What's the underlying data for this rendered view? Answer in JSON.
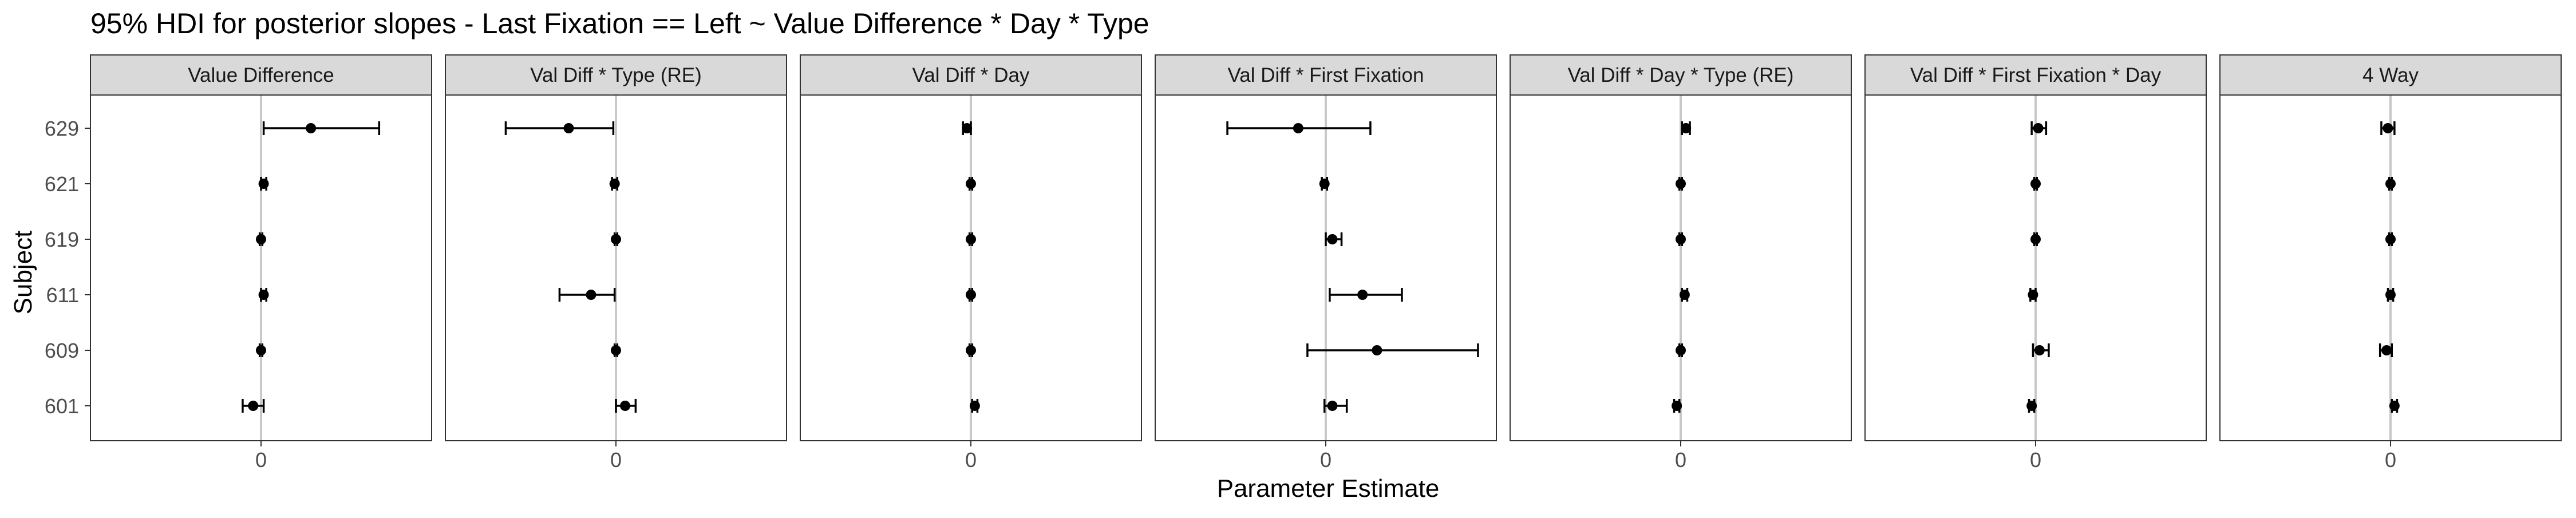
{
  "chart_data": {
    "type": "scatter",
    "subtype": "faceted point-range (95% HDI intervals)",
    "title": "95% HDI for posterior slopes - Last Fixation == Left ~ Value Difference * Day * Type",
    "xlabel": "Parameter Estimate",
    "ylabel": "Subject",
    "x_tick_labels": [
      "0"
    ],
    "y_categories": [
      "629",
      "621",
      "619",
      "611",
      "609",
      "601"
    ],
    "xlim": [
      -1.3,
      1.3
    ],
    "reference_line_x": 0,
    "grid": false,
    "facets": [
      {
        "name": "Value Difference",
        "points": [
          {
            "subject": "629",
            "estimate": 0.38,
            "lower": 0.02,
            "upper": 0.9
          },
          {
            "subject": "621",
            "estimate": 0.02,
            "lower": 0.0,
            "upper": 0.04
          },
          {
            "subject": "619",
            "estimate": 0.0,
            "lower": -0.01,
            "upper": 0.01
          },
          {
            "subject": "611",
            "estimate": 0.02,
            "lower": 0.0,
            "upper": 0.04
          },
          {
            "subject": "609",
            "estimate": 0.0,
            "lower": -0.01,
            "upper": 0.01
          },
          {
            "subject": "601",
            "estimate": -0.06,
            "lower": -0.14,
            "upper": 0.02
          }
        ]
      },
      {
        "name": "Val Diff * Type (RE)",
        "points": [
          {
            "subject": "629",
            "estimate": -0.36,
            "lower": -0.84,
            "upper": -0.02
          },
          {
            "subject": "621",
            "estimate": -0.01,
            "lower": -0.03,
            "upper": 0.01
          },
          {
            "subject": "619",
            "estimate": 0.0,
            "lower": -0.01,
            "upper": 0.01
          },
          {
            "subject": "611",
            "estimate": -0.19,
            "lower": -0.43,
            "upper": -0.01
          },
          {
            "subject": "609",
            "estimate": 0.0,
            "lower": -0.01,
            "upper": 0.01
          },
          {
            "subject": "601",
            "estimate": 0.07,
            "lower": 0.0,
            "upper": 0.15
          }
        ]
      },
      {
        "name": "Val Diff * Day",
        "points": [
          {
            "subject": "629",
            "estimate": -0.03,
            "lower": -0.06,
            "upper": 0.0
          },
          {
            "subject": "621",
            "estimate": 0.0,
            "lower": -0.01,
            "upper": 0.01
          },
          {
            "subject": "619",
            "estimate": 0.0,
            "lower": -0.01,
            "upper": 0.01
          },
          {
            "subject": "611",
            "estimate": 0.0,
            "lower": -0.01,
            "upper": 0.01
          },
          {
            "subject": "609",
            "estimate": 0.0,
            "lower": -0.01,
            "upper": 0.01
          },
          {
            "subject": "601",
            "estimate": 0.03,
            "lower": 0.01,
            "upper": 0.05
          }
        ]
      },
      {
        "name": "Val Diff * First Fixation",
        "points": [
          {
            "subject": "629",
            "estimate": -0.21,
            "lower": -0.75,
            "upper": 0.34
          },
          {
            "subject": "621",
            "estimate": -0.01,
            "lower": -0.03,
            "upper": 0.01
          },
          {
            "subject": "619",
            "estimate": 0.05,
            "lower": 0.0,
            "upper": 0.12
          },
          {
            "subject": "611",
            "estimate": 0.28,
            "lower": 0.03,
            "upper": 0.58
          },
          {
            "subject": "609",
            "estimate": 0.39,
            "lower": -0.14,
            "upper": 1.16
          },
          {
            "subject": "601",
            "estimate": 0.05,
            "lower": -0.01,
            "upper": 0.16
          }
        ]
      },
      {
        "name": "Val Diff * Day * Type (RE)",
        "points": [
          {
            "subject": "629",
            "estimate": 0.04,
            "lower": 0.01,
            "upper": 0.07
          },
          {
            "subject": "621",
            "estimate": 0.0,
            "lower": -0.01,
            "upper": 0.01
          },
          {
            "subject": "619",
            "estimate": 0.0,
            "lower": -0.01,
            "upper": 0.01
          },
          {
            "subject": "611",
            "estimate": 0.03,
            "lower": 0.01,
            "upper": 0.05
          },
          {
            "subject": "609",
            "estimate": 0.0,
            "lower": -0.01,
            "upper": 0.01
          },
          {
            "subject": "601",
            "estimate": -0.03,
            "lower": -0.05,
            "upper": -0.01
          }
        ]
      },
      {
        "name": "Val Diff * First Fixation * Day",
        "points": [
          {
            "subject": "629",
            "estimate": 0.02,
            "lower": -0.03,
            "upper": 0.08
          },
          {
            "subject": "621",
            "estimate": 0.0,
            "lower": -0.01,
            "upper": 0.01
          },
          {
            "subject": "619",
            "estimate": 0.0,
            "lower": -0.01,
            "upper": 0.01
          },
          {
            "subject": "611",
            "estimate": -0.02,
            "lower": -0.04,
            "upper": 0.0
          },
          {
            "subject": "609",
            "estimate": 0.03,
            "lower": -0.02,
            "upper": 0.1
          },
          {
            "subject": "601",
            "estimate": -0.03,
            "lower": -0.05,
            "upper": -0.01
          }
        ]
      },
      {
        "name": "4 Way",
        "points": [
          {
            "subject": "629",
            "estimate": -0.02,
            "lower": -0.07,
            "upper": 0.03
          },
          {
            "subject": "621",
            "estimate": 0.0,
            "lower": -0.01,
            "upper": 0.01
          },
          {
            "subject": "619",
            "estimate": 0.0,
            "lower": -0.01,
            "upper": 0.01
          },
          {
            "subject": "611",
            "estimate": 0.0,
            "lower": -0.02,
            "upper": 0.02
          },
          {
            "subject": "609",
            "estimate": -0.03,
            "lower": -0.08,
            "upper": 0.01
          },
          {
            "subject": "601",
            "estimate": 0.03,
            "lower": 0.01,
            "upper": 0.05
          }
        ]
      }
    ],
    "colors": {
      "point": "#000000",
      "strip_fill": "#d9d9d9",
      "panel_border": "#333333",
      "reference_line": "#c8c8c8",
      "text": "#000000",
      "tick_text": "#4d4d4d"
    }
  }
}
